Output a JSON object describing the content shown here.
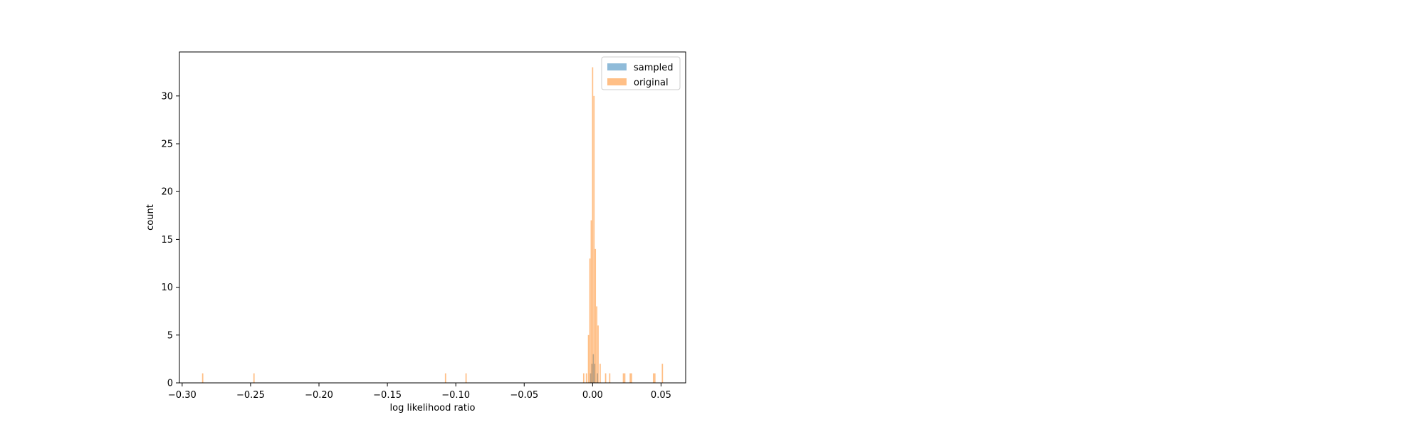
{
  "chart_data": {
    "type": "histogram",
    "title": "",
    "xlabel": "log likelihood ratio",
    "ylabel": "count",
    "xlim": [
      -0.302,
      0.068
    ],
    "ylim": [
      0,
      34.6
    ],
    "xticks": [
      -0.3,
      -0.25,
      -0.2,
      -0.15,
      -0.1,
      -0.05,
      0.0,
      0.05
    ],
    "xtick_labels": [
      "−0.30",
      "−0.25",
      "−0.20",
      "−0.15",
      "−0.10",
      "−0.05",
      "0.00",
      "0.05"
    ],
    "yticks": [
      0,
      5,
      10,
      15,
      20,
      25,
      30
    ],
    "ytick_labels": [
      "0",
      "5",
      "10",
      "15",
      "20",
      "25",
      "30"
    ],
    "grid": false,
    "legend": {
      "placement": "top-right",
      "entries": [
        "sampled",
        "original"
      ]
    },
    "bin_width": 0.0009,
    "series": [
      {
        "name": "sampled",
        "color": "#1f77b4",
        "opacity": 0.5,
        "bins": [
          {
            "x": -0.0015,
            "y": 1
          },
          {
            "x": -0.0005,
            "y": 2
          },
          {
            "x": 0.0005,
            "y": 3
          },
          {
            "x": 0.0015,
            "y": 2
          },
          {
            "x": 0.0035,
            "y": 1
          }
        ]
      },
      {
        "name": "original",
        "color": "#ff7f0e",
        "opacity": 0.5,
        "bins": [
          {
            "x": -0.285,
            "y": 1
          },
          {
            "x": -0.2475,
            "y": 1
          },
          {
            "x": -0.1075,
            "y": 1
          },
          {
            "x": -0.0925,
            "y": 1
          },
          {
            "x": -0.0065,
            "y": 1
          },
          {
            "x": -0.0045,
            "y": 1
          },
          {
            "x": -0.003,
            "y": 5
          },
          {
            "x": -0.002,
            "y": 13
          },
          {
            "x": -0.001,
            "y": 17
          },
          {
            "x": 0.0,
            "y": 33
          },
          {
            "x": 0.001,
            "y": 30
          },
          {
            "x": 0.002,
            "y": 14
          },
          {
            "x": 0.003,
            "y": 8
          },
          {
            "x": 0.004,
            "y": 6
          },
          {
            "x": 0.0055,
            "y": 2
          },
          {
            "x": 0.0095,
            "y": 1
          },
          {
            "x": 0.0125,
            "y": 1
          },
          {
            "x": 0.0225,
            "y": 1
          },
          {
            "x": 0.0235,
            "y": 1
          },
          {
            "x": 0.0275,
            "y": 1
          },
          {
            "x": 0.0285,
            "y": 1
          },
          {
            "x": 0.0445,
            "y": 1
          },
          {
            "x": 0.0455,
            "y": 1
          },
          {
            "x": 0.051,
            "y": 2
          }
        ]
      }
    ]
  }
}
